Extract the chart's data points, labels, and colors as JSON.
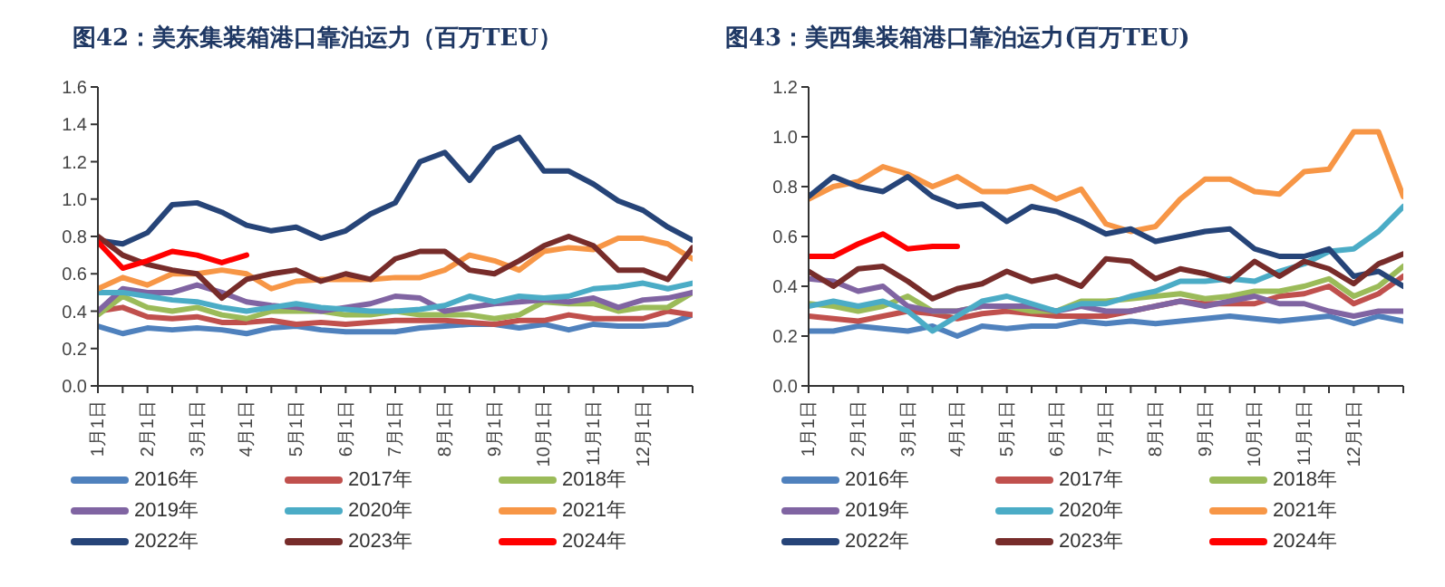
{
  "chart_data": [
    {
      "type": "line",
      "title": "图42：美东集装箱港口靠泊运力（百万TEU）",
      "legend": "bottom",
      "grid": false,
      "categories": [
        "1月1日",
        null,
        "2月1日",
        null,
        "3月1日",
        null,
        "4月1日",
        null,
        "5月1日",
        null,
        "6月1日",
        null,
        "7月1日",
        null,
        "8月1日",
        null,
        "9月1日",
        null,
        "10月1日",
        null,
        "11月1日",
        null,
        "12月1日",
        null,
        null
      ],
      "ylim": [
        0,
        1.6
      ],
      "yticks": [
        {
          "value": 0,
          "label": "0.0"
        },
        {
          "value": 0.2,
          "label": "0.2"
        },
        {
          "value": 0.4,
          "label": "0.4"
        },
        {
          "value": 0.6,
          "label": "0.6"
        },
        {
          "value": 0.8,
          "label": "0.8"
        },
        {
          "value": 1,
          "label": "1.0"
        },
        {
          "value": 1.2,
          "label": "1.2"
        },
        {
          "value": 1.4,
          "label": "1.4"
        },
        {
          "value": 1.6,
          "label": "1.6"
        }
      ],
      "series": [
        {
          "name": "2016年",
          "color": "#4f81bd",
          "values": [
            0.32,
            0.28,
            0.31,
            0.3,
            0.31,
            0.3,
            0.28,
            0.31,
            0.32,
            0.3,
            0.29,
            0.29,
            0.29,
            0.31,
            0.32,
            0.33,
            0.33,
            0.31,
            0.33,
            0.3,
            0.33,
            0.32,
            0.32,
            0.33,
            0.38
          ]
        },
        {
          "name": "2017年",
          "color": "#c0504d",
          "values": [
            0.4,
            0.42,
            0.37,
            0.36,
            0.37,
            0.34,
            0.34,
            0.35,
            0.33,
            0.34,
            0.33,
            0.34,
            0.35,
            0.35,
            0.35,
            0.34,
            0.33,
            0.35,
            0.35,
            0.38,
            0.36,
            0.36,
            0.36,
            0.4,
            0.38
          ]
        },
        {
          "name": "2018年",
          "color": "#9bbb59",
          "values": [
            0.38,
            0.48,
            0.42,
            0.4,
            0.42,
            0.38,
            0.36,
            0.4,
            0.4,
            0.4,
            0.38,
            0.38,
            0.4,
            0.38,
            0.38,
            0.38,
            0.36,
            0.38,
            0.45,
            0.44,
            0.44,
            0.4,
            0.42,
            0.42,
            0.5
          ]
        },
        {
          "name": "2019年",
          "color": "#8064a2",
          "values": [
            0.4,
            0.52,
            0.5,
            0.5,
            0.54,
            0.5,
            0.45,
            0.43,
            0.42,
            0.4,
            0.42,
            0.44,
            0.48,
            0.47,
            0.4,
            0.42,
            0.44,
            0.45,
            0.46,
            0.45,
            0.47,
            0.42,
            0.46,
            0.47,
            0.5
          ]
        },
        {
          "name": "2020年",
          "color": "#4bacc6",
          "values": [
            0.5,
            0.5,
            0.48,
            0.46,
            0.45,
            0.42,
            0.4,
            0.42,
            0.44,
            0.42,
            0.41,
            0.4,
            0.4,
            0.41,
            0.43,
            0.48,
            0.45,
            0.48,
            0.47,
            0.48,
            0.52,
            0.53,
            0.55,
            0.52,
            0.55
          ]
        },
        {
          "name": "2021年",
          "color": "#f79646",
          "values": [
            0.52,
            0.58,
            0.54,
            0.6,
            0.6,
            0.62,
            0.6,
            0.52,
            0.56,
            0.57,
            0.57,
            0.57,
            0.58,
            0.58,
            0.62,
            0.7,
            0.67,
            0.62,
            0.72,
            0.74,
            0.73,
            0.79,
            0.79,
            0.76,
            0.68
          ]
        },
        {
          "name": "2022年",
          "color": "#264478",
          "values": [
            0.78,
            0.76,
            0.82,
            0.97,
            0.98,
            0.93,
            0.86,
            0.83,
            0.85,
            0.79,
            0.83,
            0.92,
            0.98,
            1.2,
            1.25,
            1.1,
            1.27,
            1.33,
            1.15,
            1.15,
            1.08,
            0.99,
            0.94,
            0.85,
            0.78
          ]
        },
        {
          "name": "2023年",
          "color": "#772c2a",
          "values": [
            0.8,
            0.7,
            0.65,
            0.62,
            0.6,
            0.47,
            0.57,
            0.6,
            0.62,
            0.56,
            0.6,
            0.57,
            0.68,
            0.72,
            0.72,
            0.62,
            0.6,
            0.67,
            0.75,
            0.8,
            0.75,
            0.62,
            0.62,
            0.57,
            0.74
          ]
        },
        {
          "name": "2024年",
          "color": "#ff0000",
          "values": [
            0.77,
            0.63,
            0.67,
            0.72,
            0.7,
            0.66,
            0.7,
            null,
            null,
            null,
            null,
            null,
            null,
            null,
            null,
            null,
            null,
            null,
            null,
            null,
            null,
            null,
            null,
            null,
            null
          ]
        }
      ]
    },
    {
      "type": "line",
      "title": "图43：美西集装箱港口靠泊运力(百万TEU)",
      "legend": "bottom",
      "grid": false,
      "categories": [
        "1月1日",
        null,
        "2月1日",
        null,
        "3月1日",
        null,
        "4月1日",
        null,
        "5月1日",
        null,
        "6月1日",
        null,
        "7月1日",
        null,
        "8月1日",
        null,
        "9月1日",
        null,
        "10月1日",
        null,
        "11月1日",
        null,
        "12月1日",
        null,
        null
      ],
      "ylim": [
        0,
        1.2
      ],
      "yticks": [
        {
          "value": 0,
          "label": "0.0"
        },
        {
          "value": 0.2,
          "label": "0.2"
        },
        {
          "value": 0.4,
          "label": "0.4"
        },
        {
          "value": 0.6,
          "label": "0.6"
        },
        {
          "value": 0.8,
          "label": "0.8"
        },
        {
          "value": 1,
          "label": "1.0"
        },
        {
          "value": 1.2,
          "label": "1.2"
        }
      ],
      "series": [
        {
          "name": "2016年",
          "color": "#4f81bd",
          "values": [
            0.22,
            0.22,
            0.24,
            0.23,
            0.22,
            0.24,
            0.2,
            0.24,
            0.23,
            0.24,
            0.24,
            0.26,
            0.25,
            0.26,
            0.25,
            0.26,
            0.27,
            0.28,
            0.27,
            0.26,
            0.27,
            0.28,
            0.25,
            0.28,
            0.26
          ]
        },
        {
          "name": "2017年",
          "color": "#c0504d",
          "values": [
            0.28,
            0.27,
            0.26,
            0.28,
            0.3,
            0.29,
            0.27,
            0.29,
            0.3,
            0.29,
            0.28,
            0.28,
            0.28,
            0.3,
            0.32,
            0.34,
            0.33,
            0.33,
            0.33,
            0.36,
            0.37,
            0.4,
            0.33,
            0.37,
            0.44
          ]
        },
        {
          "name": "2018年",
          "color": "#9bbb59",
          "values": [
            0.33,
            0.32,
            0.3,
            0.32,
            0.36,
            0.3,
            0.3,
            0.32,
            0.32,
            0.3,
            0.3,
            0.34,
            0.34,
            0.35,
            0.36,
            0.37,
            0.35,
            0.36,
            0.38,
            0.38,
            0.4,
            0.43,
            0.36,
            0.4,
            0.48
          ]
        },
        {
          "name": "2019年",
          "color": "#8064a2",
          "values": [
            0.43,
            0.42,
            0.38,
            0.4,
            0.32,
            0.3,
            0.3,
            0.32,
            0.32,
            0.32,
            0.3,
            0.32,
            0.3,
            0.3,
            0.32,
            0.34,
            0.32,
            0.34,
            0.36,
            0.33,
            0.33,
            0.3,
            0.28,
            0.3,
            0.3
          ]
        },
        {
          "name": "2020年",
          "color": "#4bacc6",
          "values": [
            0.32,
            0.34,
            0.32,
            0.34,
            0.3,
            0.22,
            0.28,
            0.34,
            0.36,
            0.33,
            0.3,
            0.33,
            0.33,
            0.36,
            0.38,
            0.42,
            0.42,
            0.43,
            0.42,
            0.46,
            0.49,
            0.54,
            0.55,
            0.62,
            0.72
          ]
        },
        {
          "name": "2021年",
          "color": "#f79646",
          "values": [
            0.75,
            0.8,
            0.82,
            0.88,
            0.85,
            0.8,
            0.84,
            0.78,
            0.78,
            0.8,
            0.75,
            0.79,
            0.65,
            0.62,
            0.64,
            0.75,
            0.83,
            0.83,
            0.78,
            0.77,
            0.86,
            0.87,
            1.02,
            1.02,
            0.76
          ]
        },
        {
          "name": "2022年",
          "color": "#264478",
          "values": [
            0.76,
            0.84,
            0.8,
            0.78,
            0.84,
            0.76,
            0.72,
            0.73,
            0.66,
            0.72,
            0.7,
            0.66,
            0.61,
            0.63,
            0.58,
            0.6,
            0.62,
            0.63,
            0.55,
            0.52,
            0.52,
            0.55,
            0.44,
            0.46,
            0.4
          ]
        },
        {
          "name": "2023年",
          "color": "#772c2a",
          "values": [
            0.46,
            0.4,
            0.47,
            0.48,
            0.42,
            0.35,
            0.39,
            0.41,
            0.46,
            0.42,
            0.44,
            0.4,
            0.51,
            0.5,
            0.43,
            0.47,
            0.45,
            0.42,
            0.5,
            0.44,
            0.5,
            0.47,
            0.41,
            0.49,
            0.53
          ]
        },
        {
          "name": "2024年",
          "color": "#ff0000",
          "values": [
            0.52,
            0.52,
            0.57,
            0.61,
            0.55,
            0.56,
            0.56,
            null,
            null,
            null,
            null,
            null,
            null,
            null,
            null,
            null,
            null,
            null,
            null,
            null,
            null,
            null,
            null,
            null,
            null
          ]
        }
      ]
    }
  ]
}
